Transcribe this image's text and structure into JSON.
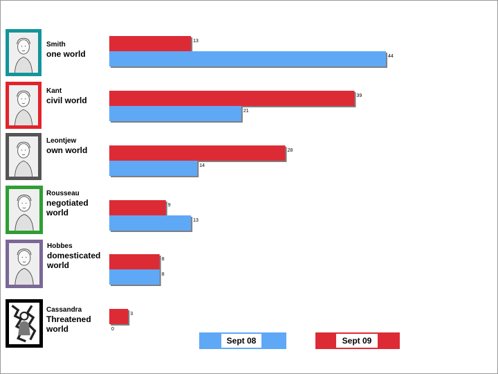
{
  "chart_data": {
    "type": "bar",
    "orientation": "horizontal",
    "categories": [
      {
        "name": "Smith",
        "world": "one world"
      },
      {
        "name": "Kant",
        "world": "civil world"
      },
      {
        "name": "Leontjew",
        "world": "own world"
      },
      {
        "name": "Rousseau",
        "world": "negotiated world"
      },
      {
        "name": "Hobbes",
        "world": "domesticated world"
      },
      {
        "name": "Cassandra",
        "world": "Threatened world"
      }
    ],
    "series": [
      {
        "name": "Sept 09",
        "color": "#dd2b36",
        "values": [
          13,
          39,
          28,
          9,
          8,
          3
        ]
      },
      {
        "name": "Sept 08",
        "color": "#5fa8f6",
        "values": [
          44,
          21,
          14,
          13,
          8,
          0
        ]
      }
    ],
    "legend": "bottom",
    "grid": false
  },
  "portraits": [
    {
      "icon": "smith-portrait-icon",
      "border_color": "#13959a"
    },
    {
      "icon": "kant-portrait-icon",
      "border_color": "#e2232b"
    },
    {
      "icon": "leontjew-portrait-icon",
      "border_color": "#555555"
    },
    {
      "icon": "rousseau-portrait-icon",
      "border_color": "#2f9e33"
    },
    {
      "icon": "hobbes-portrait-icon",
      "border_color": "#7a6896"
    },
    {
      "icon": "cassandra-portrait-icon",
      "border_color": "#000000"
    }
  ]
}
